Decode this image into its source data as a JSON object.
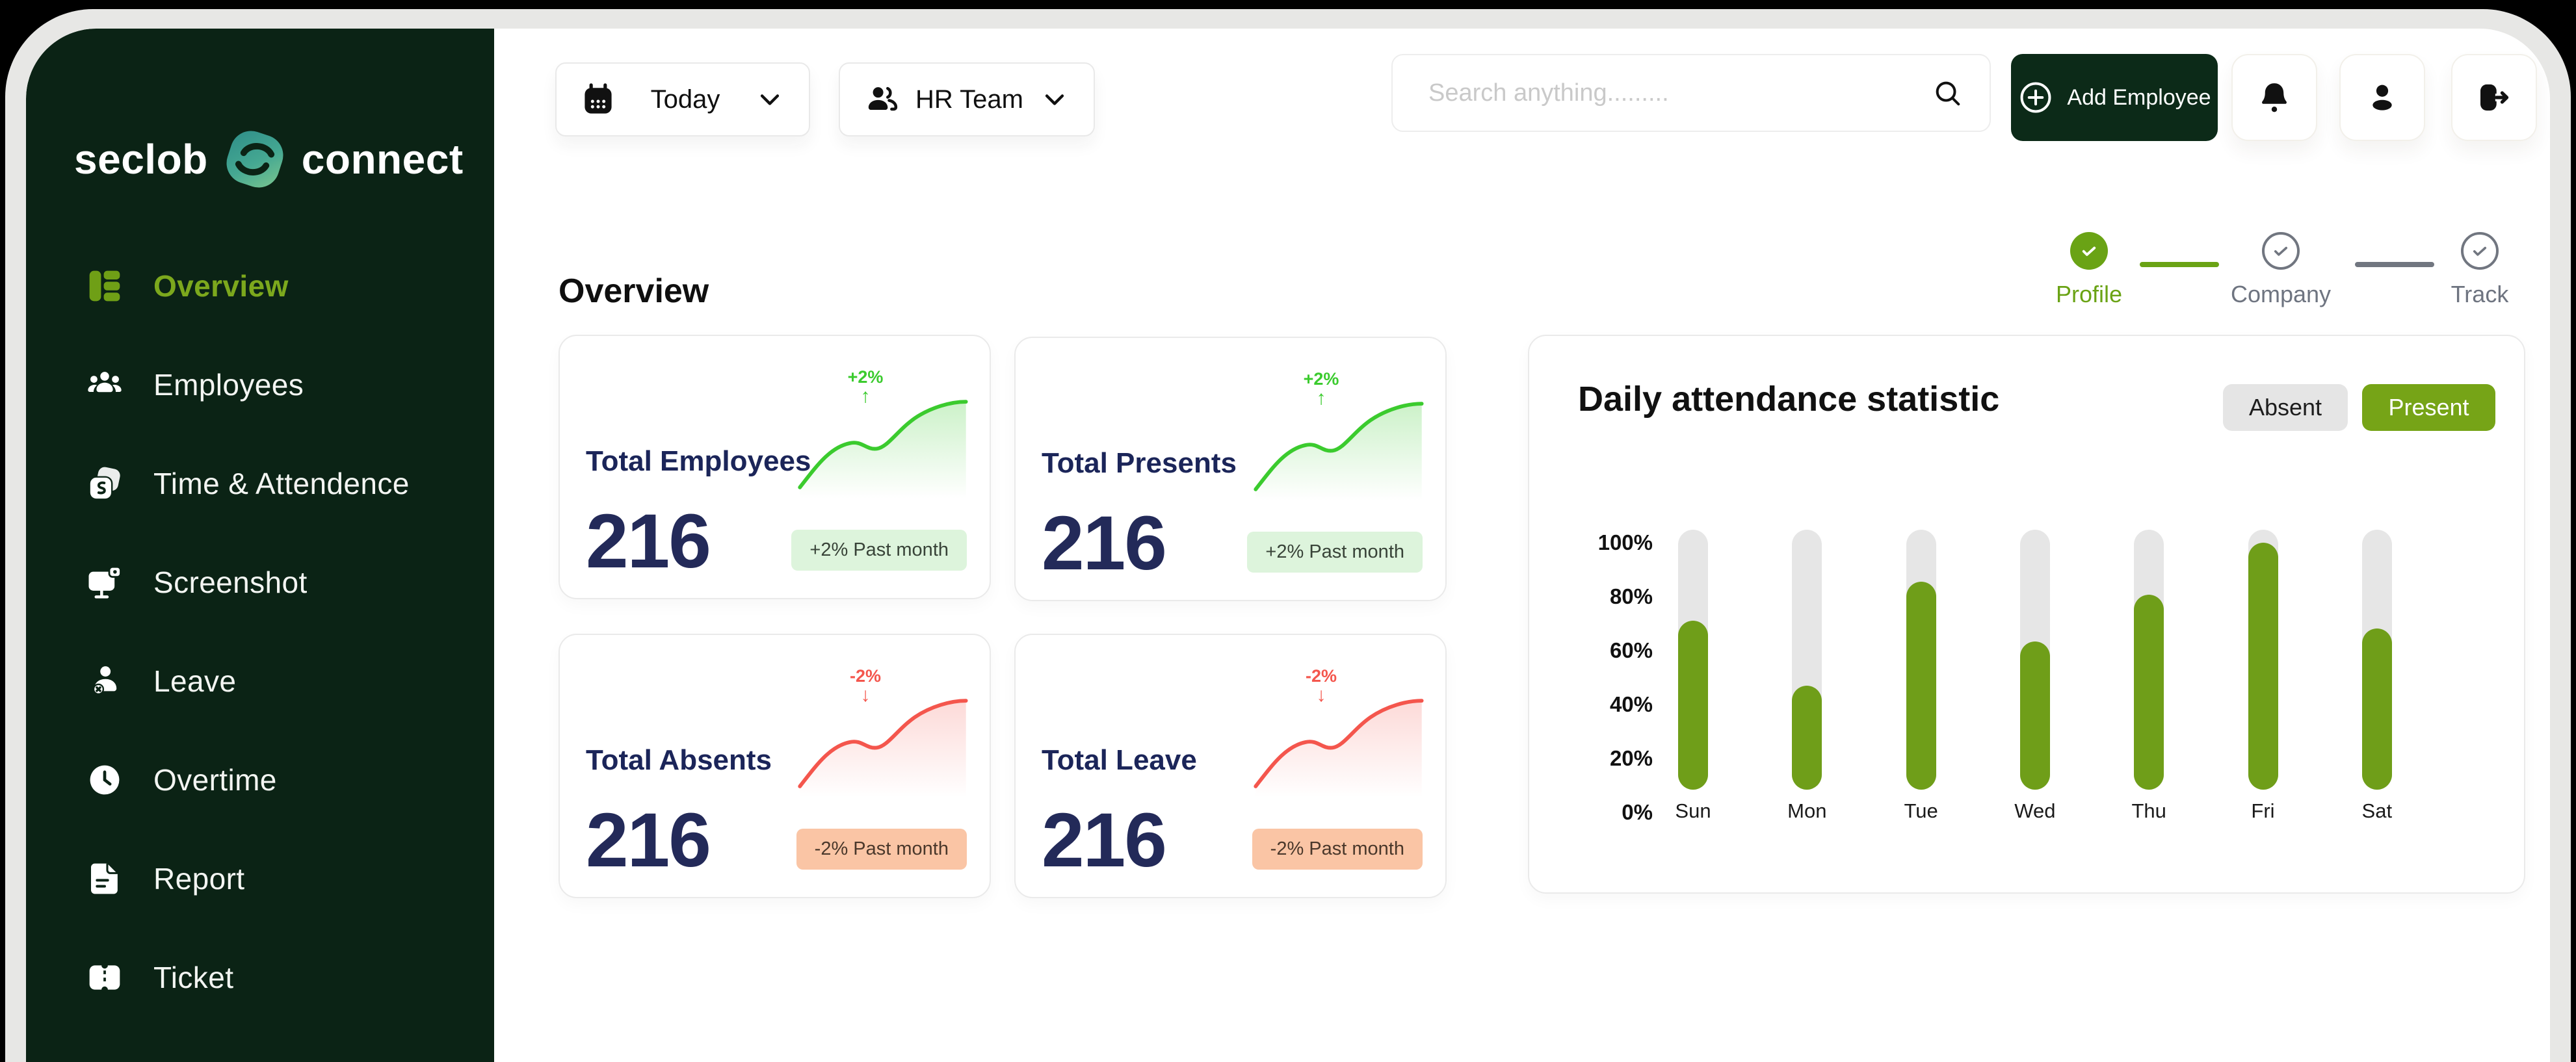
{
  "brand": {
    "left": "seclob",
    "right": "connect"
  },
  "sidebar": {
    "items": [
      {
        "label": "Overview",
        "active": true
      },
      {
        "label": "Employees",
        "active": false
      },
      {
        "label": "Time & Attendence",
        "active": false
      },
      {
        "label": "Screenshot",
        "active": false
      },
      {
        "label": "Leave",
        "active": false
      },
      {
        "label": "Overtime",
        "active": false
      },
      {
        "label": "Report",
        "active": false
      },
      {
        "label": "Ticket",
        "active": false
      }
    ]
  },
  "topbar": {
    "date_filter_label": "Today",
    "team_filter_label": "HR Team",
    "search_placeholder": "Search anything.........",
    "add_employee_label": "Add Employee"
  },
  "stepper": {
    "steps": [
      {
        "label": "Profile",
        "state": "complete"
      },
      {
        "label": "Company",
        "state": "upcoming"
      },
      {
        "label": "Track",
        "state": "upcoming"
      }
    ]
  },
  "overview": {
    "heading": "Overview",
    "cards": [
      {
        "title": "Total Employees",
        "value": "216",
        "trend": "up",
        "trend_note": "+2%",
        "arrow": "↑",
        "badge": "+2% Past month"
      },
      {
        "title": "Total Presents",
        "value": "216",
        "trend": "up",
        "trend_note": "+2%",
        "arrow": "↑",
        "badge": "+2% Past month"
      },
      {
        "title": "Total Absents",
        "value": "216",
        "trend": "down",
        "trend_note": "-2%",
        "arrow": "↓",
        "badge": "-2% Past month"
      },
      {
        "title": "Total Leave",
        "value": "216",
        "trend": "down",
        "trend_note": "-2%",
        "arrow": "↓",
        "badge": "-2% Past month"
      }
    ]
  },
  "chart_data": {
    "type": "bar",
    "title": "Daily attendance statistic",
    "toggles": [
      {
        "label": "Absent",
        "active": false
      },
      {
        "label": "Present",
        "active": true
      }
    ],
    "categories": [
      "Sun",
      "Mon",
      "Tue",
      "Wed",
      "Thu",
      "Fri",
      "Sat"
    ],
    "values": [
      65,
      40,
      80,
      57,
      75,
      95,
      62
    ],
    "unit": "%",
    "y_ticks": [
      "100%",
      "80%",
      "60%",
      "40%",
      "20%",
      "0%"
    ],
    "ylim": [
      0,
      100
    ],
    "grid": false,
    "legend": "none",
    "bar_color": "#6f9e19",
    "track_color": "#e6e6e6"
  },
  "colors": {
    "sidebar_bg": "#0b2315",
    "accent_green": "#76a417",
    "active_nav_green": "#7ca81d",
    "stat_navy": "#232a59",
    "spark_green": "#3bcb2e",
    "spark_red": "#f4564d",
    "badge_green_bg": "#ddf4dc",
    "badge_red_bg": "#fac5a5",
    "frame_gray": "#e7e7e5"
  }
}
